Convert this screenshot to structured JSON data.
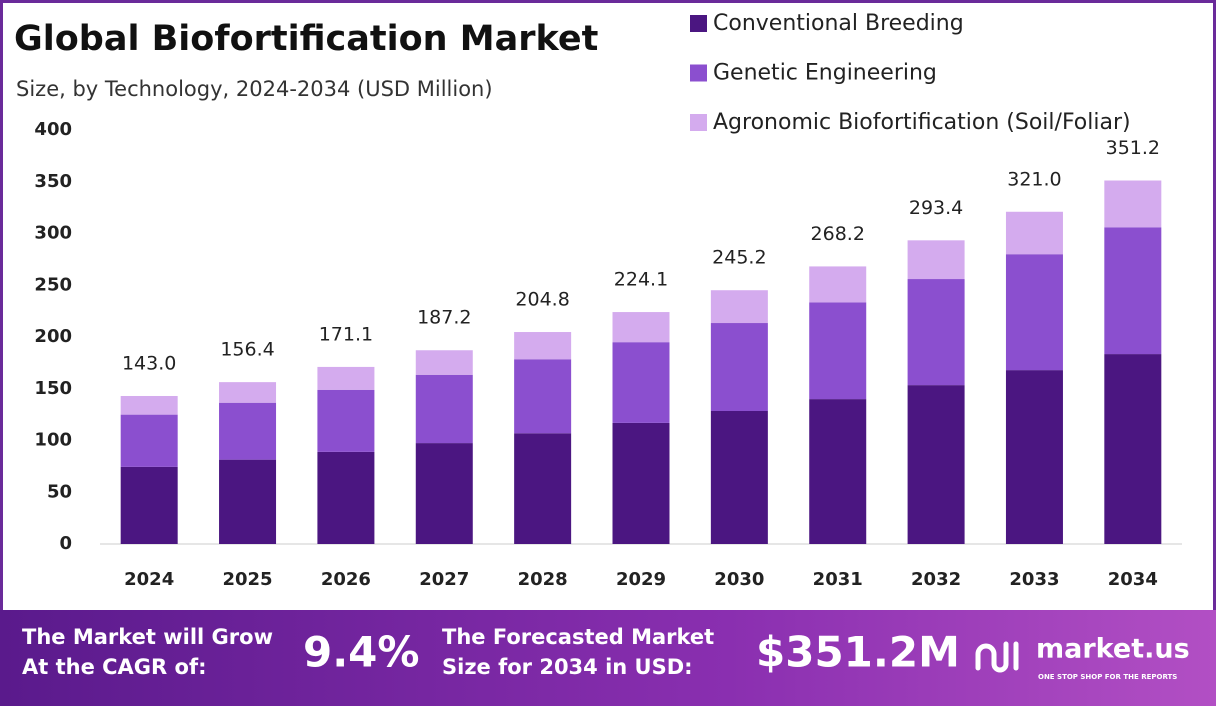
{
  "chart_data": {
    "type": "stacked_bar",
    "title": "Global Biofortification Market",
    "subtitle": "Size, by Technology, 2024-2034 (USD Million)",
    "categories": [
      "2024",
      "2025",
      "2026",
      "2027",
      "2028",
      "2029",
      "2030",
      "2031",
      "2032",
      "2033",
      "2034"
    ],
    "series": [
      {
        "name": "Conventional Breeding",
        "color": "#4b1681",
        "values": [
          74.5,
          81.5,
          89.0,
          97.5,
          107.0,
          117.0,
          128.5,
          140.0,
          153.5,
          168.0,
          183.5
        ]
      },
      {
        "name": "Genetic Engineering",
        "color": "#8b4fcf",
        "values": [
          50.5,
          55.0,
          60.0,
          66.0,
          71.5,
          78.0,
          85.0,
          93.5,
          102.5,
          112.0,
          122.5
        ]
      },
      {
        "name": "Agronomic Biofortification (Soil/Foliar)",
        "color": "#d4abee",
        "values": [
          18.0,
          19.9,
          22.1,
          23.7,
          26.3,
          29.1,
          31.7,
          34.7,
          37.4,
          41.0,
          45.2
        ]
      }
    ],
    "totals": {
      "values": [
        143.0,
        156.4,
        171.1,
        187.2,
        204.8,
        224.1,
        245.2,
        268.2,
        293.4,
        321.0,
        351.2
      ],
      "value_labels": [
        "143.0",
        "156.4",
        "171.1",
        "187.2",
        "204.8",
        "224.1",
        "245.2",
        "268.2",
        "293.4",
        "321.0",
        "351.2"
      ]
    },
    "ylim": [
      0,
      400
    ],
    "yticks": [
      0,
      50,
      100,
      150,
      200,
      250,
      300,
      350,
      400
    ],
    "grid": false,
    "legend": "top-right"
  },
  "footer": {
    "cagr_text": [
      "The Market will Grow",
      "At the CAGR of:"
    ],
    "cagr_value": "9.4%",
    "forecast_text": [
      "The Forecasted Market",
      "Size for 2034 in USD:"
    ],
    "forecast_value": "$351.2M",
    "brand": "market.us",
    "tagline": "ONE STOP SHOP FOR THE REPORTS"
  }
}
